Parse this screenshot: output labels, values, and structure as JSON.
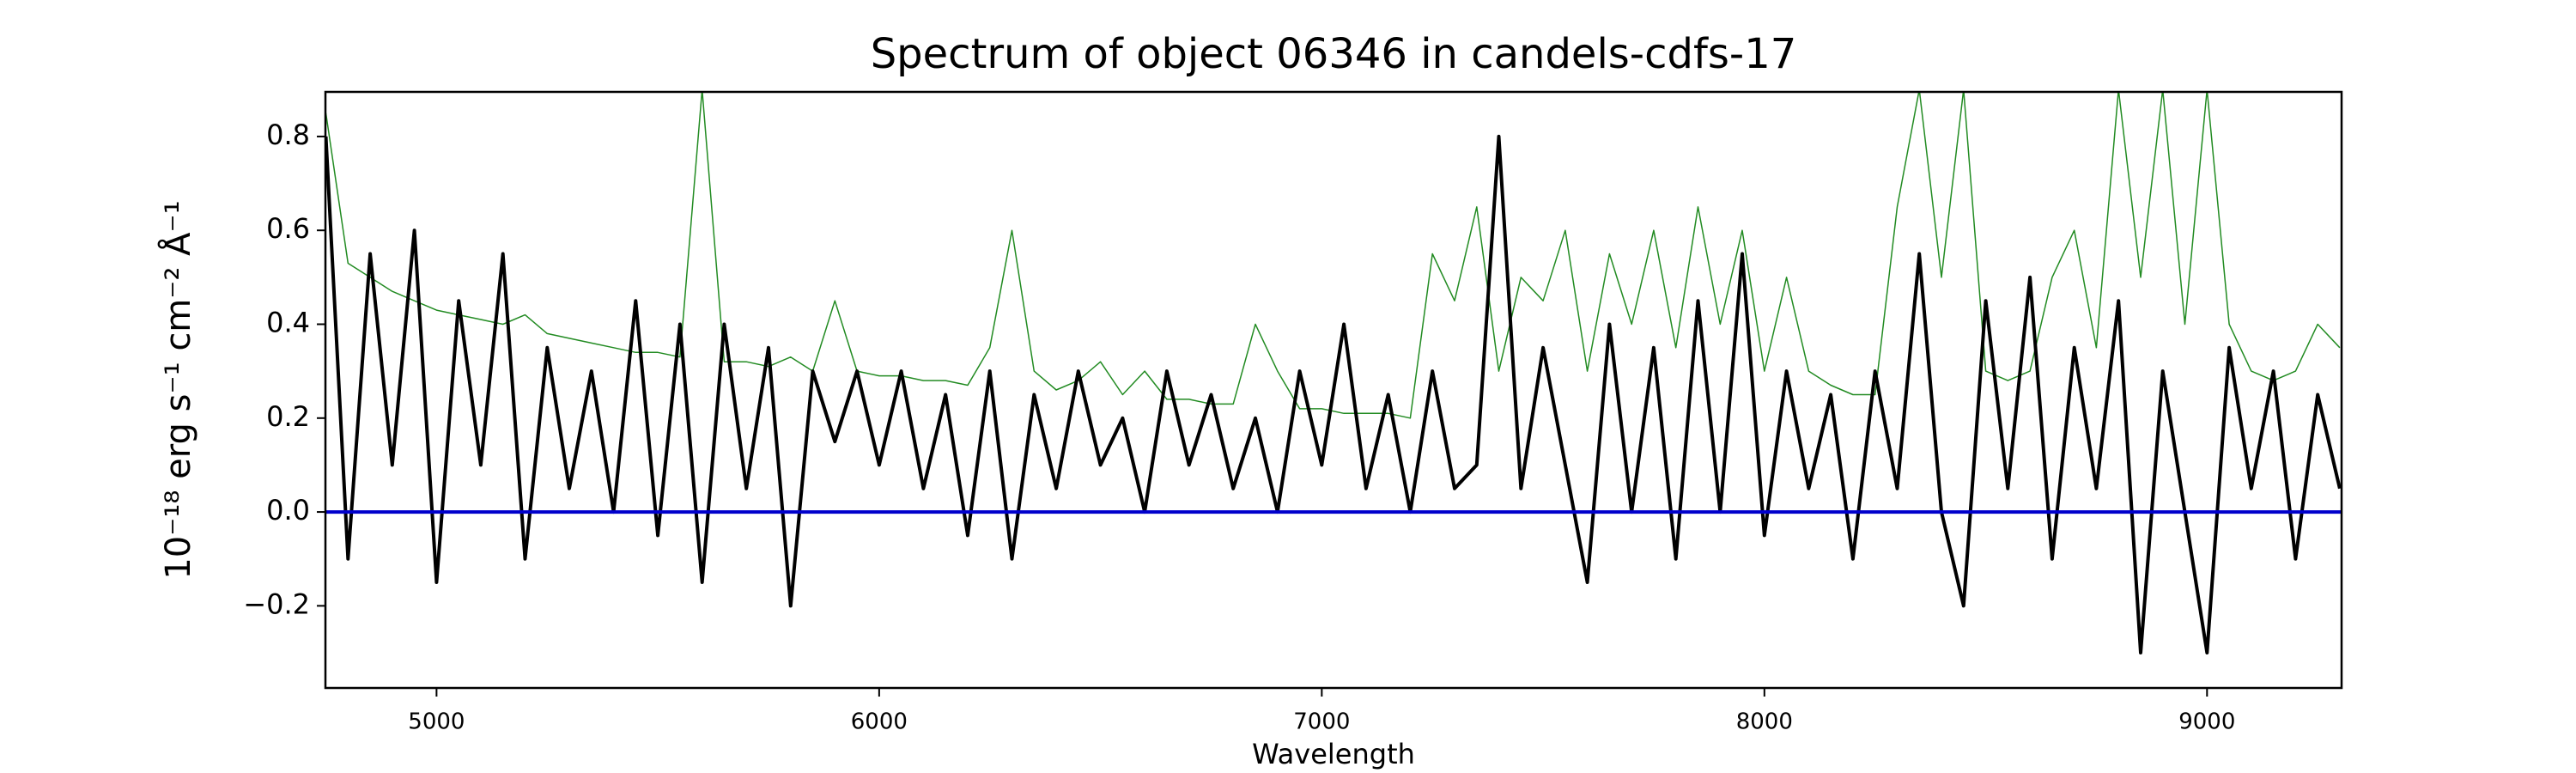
{
  "chart_data": {
    "type": "line",
    "title": "Spectrum of object 06346 in candels-cdfs-17",
    "x_label": "Wavelength",
    "y_label": "10⁻¹⁸ erg s⁻¹ cm⁻² Å⁻¹",
    "xlim": [
      4749,
      9304
    ],
    "ylim": [
      -0.375,
      0.895
    ],
    "xticks": [
      5000,
      6000,
      7000,
      8000,
      9000
    ],
    "yticks": [
      {
        "value": -0.2,
        "label": "−0.2"
      },
      {
        "value": 0,
        "label": "0.0"
      },
      0.2,
      0.4,
      0.6,
      0.8
    ],
    "hline": {
      "value": 0,
      "color": "#0000cc"
    },
    "x": [
      4750,
      4800,
      4850,
      4900,
      4950,
      5000,
      5050,
      5100,
      5150,
      5200,
      5250,
      5300,
      5350,
      5400,
      5450,
      5500,
      5550,
      5600,
      5650,
      5700,
      5750,
      5800,
      5850,
      5900,
      5950,
      6000,
      6050,
      6100,
      6150,
      6200,
      6250,
      6300,
      6350,
      6400,
      6450,
      6500,
      6550,
      6600,
      6650,
      6700,
      6750,
      6800,
      6850,
      6900,
      6950,
      7000,
      7050,
      7100,
      7150,
      7200,
      7250,
      7300,
      7350,
      7400,
      7450,
      7500,
      7550,
      7600,
      7650,
      7700,
      7750,
      7800,
      7850,
      7900,
      7950,
      8000,
      8050,
      8100,
      8150,
      8200,
      8250,
      8300,
      8350,
      8400,
      8450,
      8500,
      8550,
      8600,
      8650,
      8700,
      8750,
      8800,
      8850,
      8900,
      8950,
      9000,
      9050,
      9100,
      9150,
      9200,
      9250,
      9300
    ],
    "series": [
      {
        "color": "#228b22",
        "width": 1.5,
        "values": [
          0.85,
          0.53,
          0.5,
          0.47,
          0.45,
          0.43,
          0.42,
          0.41,
          0.4,
          0.42,
          0.38,
          0.37,
          0.36,
          0.35,
          0.34,
          0.34,
          0.33,
          0.9,
          0.32,
          0.32,
          0.31,
          0.33,
          0.3,
          0.45,
          0.3,
          0.29,
          0.29,
          0.28,
          0.28,
          0.27,
          0.35,
          0.6,
          0.3,
          0.26,
          0.28,
          0.32,
          0.25,
          0.3,
          0.24,
          0.24,
          0.23,
          0.23,
          0.4,
          0.3,
          0.22,
          0.22,
          0.21,
          0.21,
          0.21,
          0.2,
          0.55,
          0.45,
          0.65,
          0.3,
          0.5,
          0.45,
          0.6,
          0.3,
          0.55,
          0.4,
          0.6,
          0.35,
          0.65,
          0.4,
          0.6,
          0.3,
          0.5,
          0.3,
          0.27,
          0.25,
          0.25,
          0.65,
          0.9,
          0.5,
          0.9,
          0.3,
          0.28,
          0.3,
          0.5,
          0.6,
          0.35,
          0.9,
          0.5,
          0.9,
          0.4,
          0.9,
          0.4,
          0.3,
          0.28,
          0.3,
          0.4,
          0.35
        ]
      },
      {
        "color": "#000000",
        "width": 4,
        "values": [
          0.8,
          -0.1,
          0.55,
          0.1,
          0.6,
          -0.15,
          0.45,
          0.1,
          0.55,
          -0.1,
          0.35,
          0.05,
          0.3,
          0.0,
          0.45,
          -0.05,
          0.4,
          -0.15,
          0.4,
          0.05,
          0.35,
          -0.2,
          0.3,
          0.15,
          0.3,
          0.1,
          0.3,
          0.05,
          0.25,
          -0.05,
          0.3,
          -0.1,
          0.25,
          0.05,
          0.3,
          0.1,
          0.2,
          0.0,
          0.3,
          0.1,
          0.25,
          0.05,
          0.2,
          0.0,
          0.3,
          0.1,
          0.4,
          0.05,
          0.25,
          0.0,
          0.3,
          0.05,
          0.1,
          0.8,
          0.05,
          0.35,
          0.1,
          -0.15,
          0.4,
          0.0,
          0.35,
          -0.1,
          0.45,
          0.0,
          0.55,
          -0.05,
          0.3,
          0.05,
          0.25,
          -0.1,
          0.3,
          0.05,
          0.55,
          0.0,
          -0.2,
          0.45,
          0.05,
          0.5,
          -0.1,
          0.35,
          0.05,
          0.45,
          -0.3,
          0.3,
          0.0,
          -0.3,
          0.35,
          0.05,
          0.3,
          -0.1,
          0.25,
          0.05
        ]
      }
    ]
  }
}
